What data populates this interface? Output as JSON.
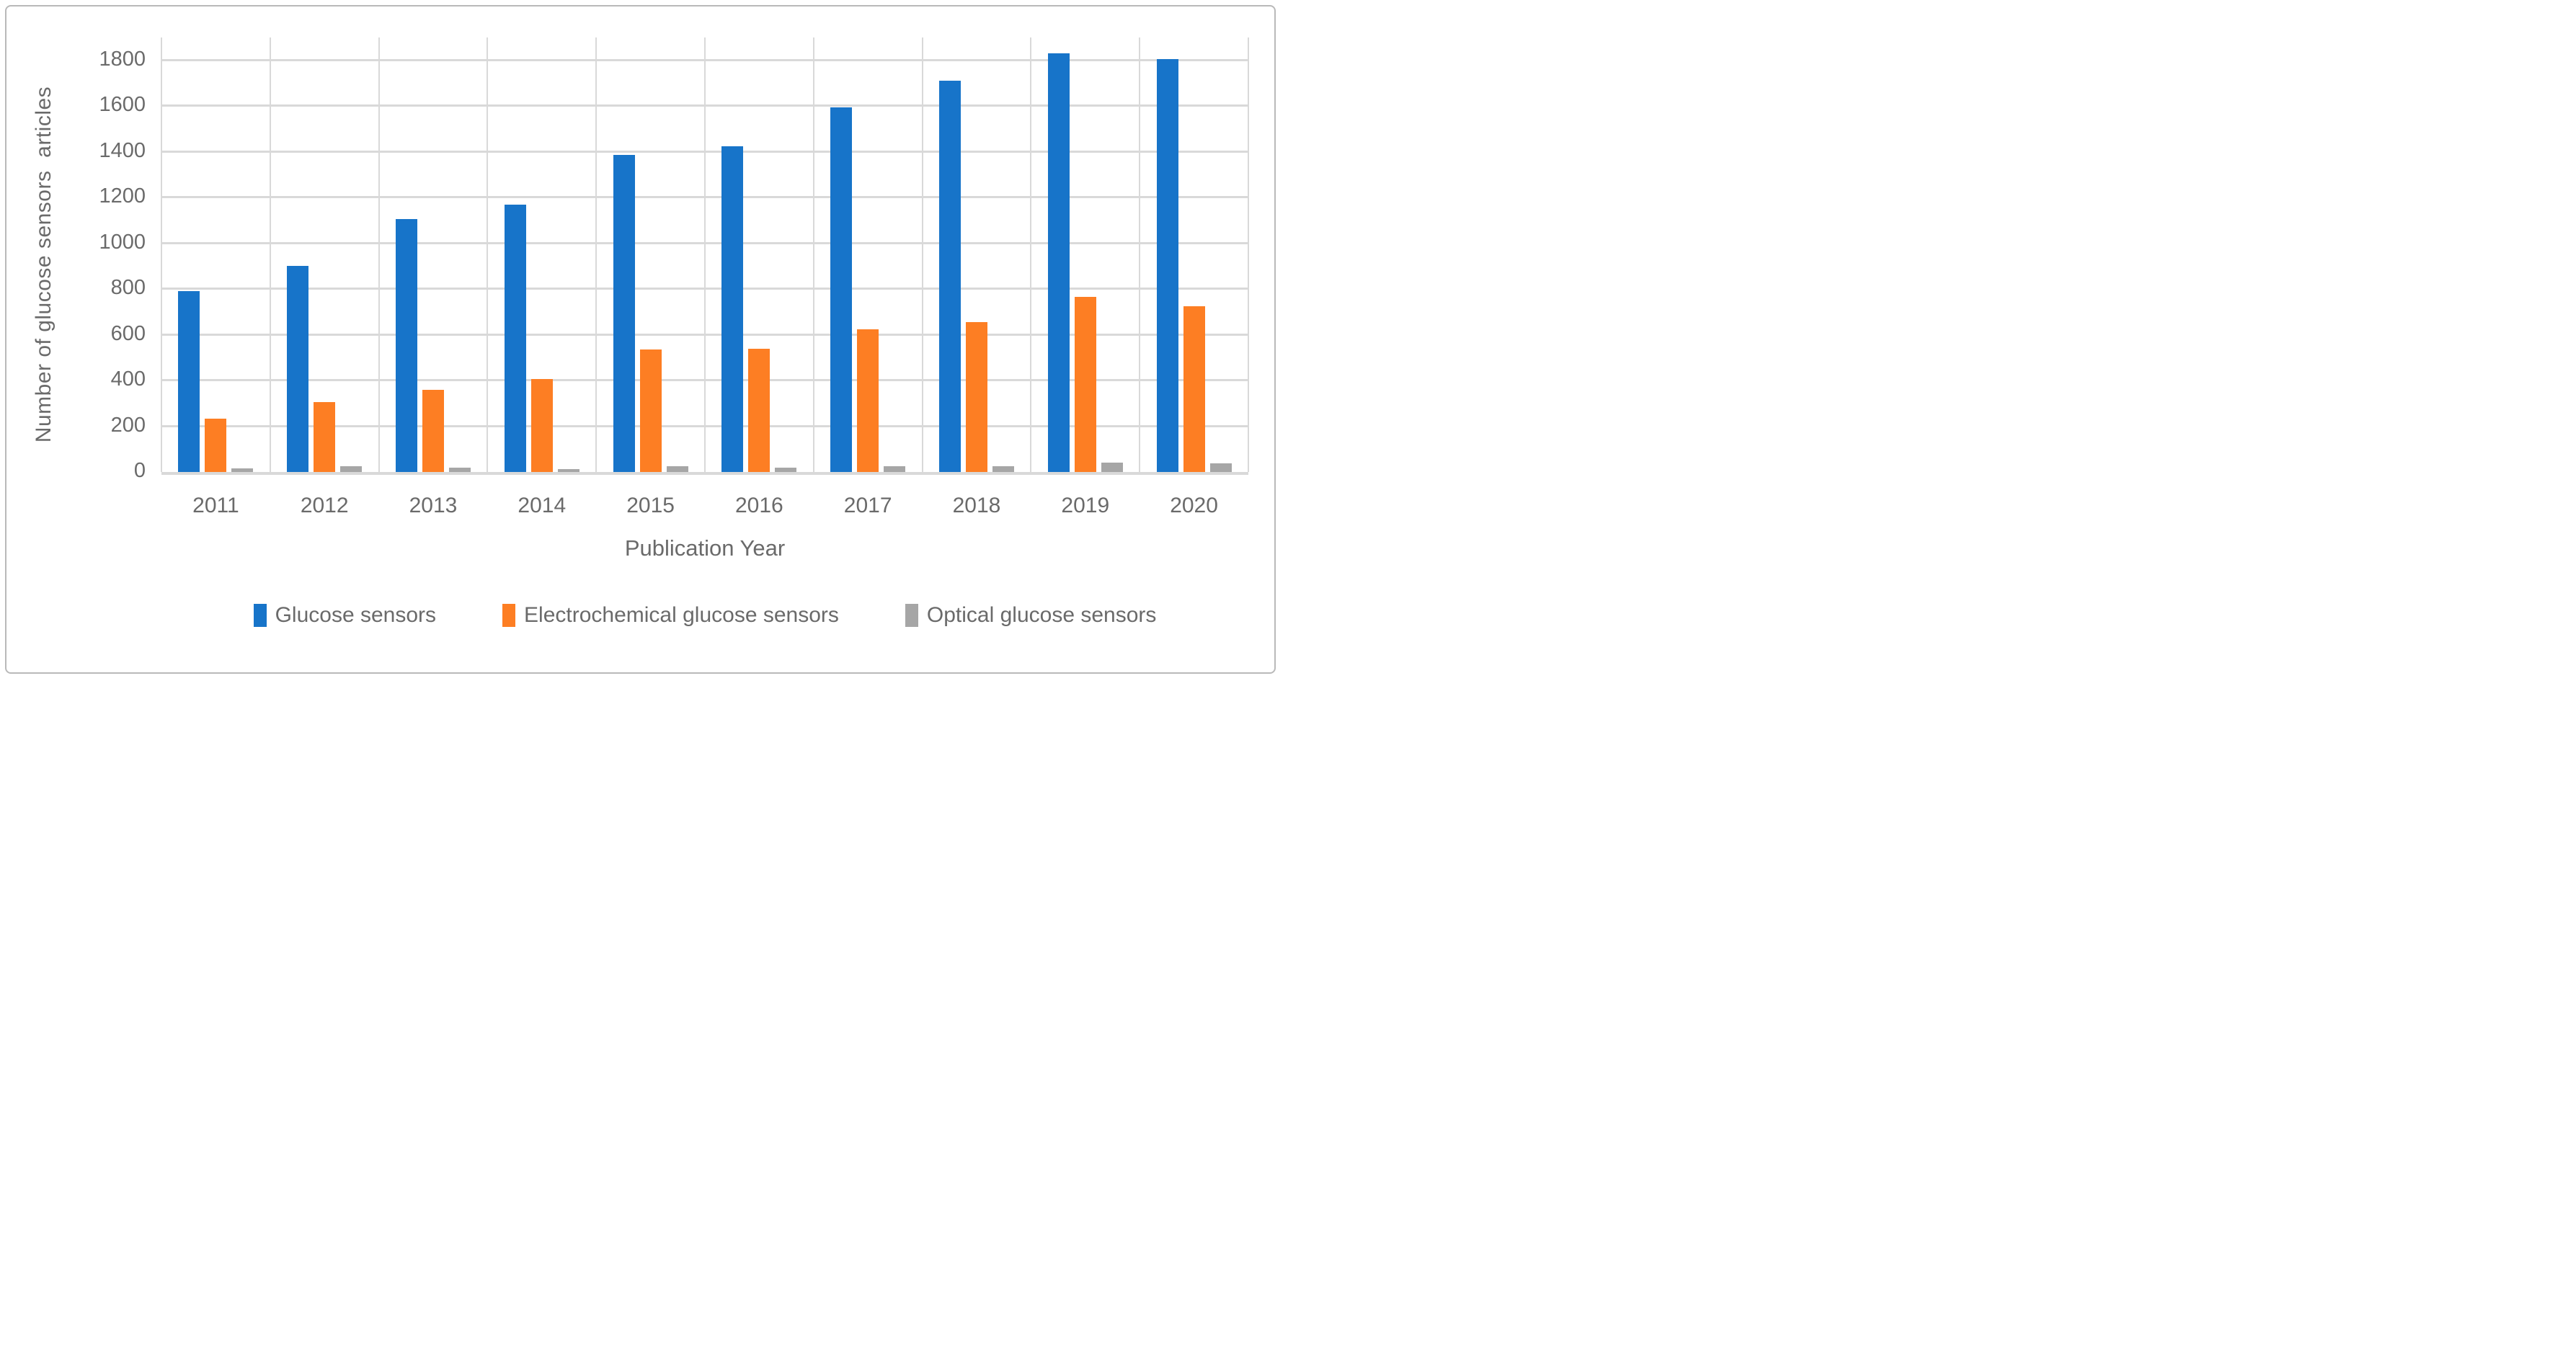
{
  "chart_data": {
    "type": "bar",
    "title": "",
    "categories": [
      "2011",
      "2012",
      "2013",
      "2014",
      "2015",
      "2016",
      "2017",
      "2018",
      "2019",
      "2020"
    ],
    "series": [
      {
        "name": "Glucose sensors",
        "color": "#1774c9",
        "values": [
          790,
          900,
          1105,
          1170,
          1385,
          1425,
          1595,
          1710,
          1830,
          1805
        ]
      },
      {
        "name": "Electrochemical glucose sensors",
        "color": "#fd7e23",
        "values": [
          233,
          305,
          360,
          405,
          535,
          540,
          625,
          655,
          765,
          725
        ]
      },
      {
        "name": "Optical glucose sensors",
        "color": "#a6a6a6",
        "values": [
          15,
          26,
          19,
          12,
          26,
          18,
          26,
          26,
          40,
          38
        ]
      }
    ],
    "xlabel": "Publication Year",
    "ylabel": "Number of glucose sensors  articles",
    "ylim": [
      0,
      1900
    ],
    "yticks": [
      0,
      200,
      400,
      600,
      800,
      1000,
      1200,
      1400,
      1600,
      1800
    ],
    "grid": "horizontal major gridlines every 200; vertical gridlines at category boundaries",
    "legend_position": "bottom",
    "gridline_color": "#d9d9d9",
    "text_color": "#6a6a6a"
  }
}
